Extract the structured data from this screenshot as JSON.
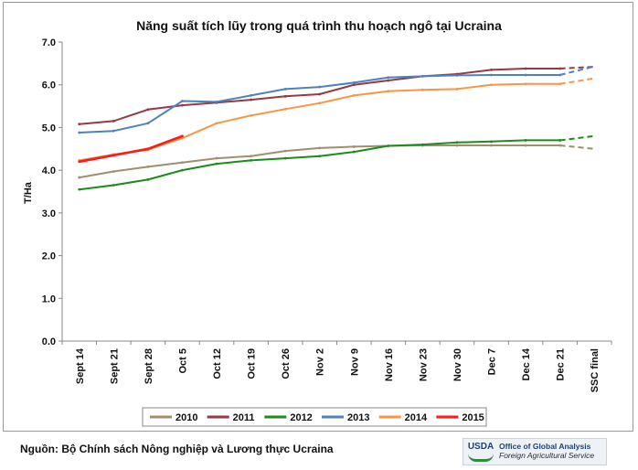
{
  "chart_data": {
    "type": "line",
    "title": "Năng suất tích lũy trong quá trình thu hoạch ngô tại Ucraina",
    "xlabel": "",
    "ylabel": "T/Ha",
    "ylim": [
      0,
      7
    ],
    "yticks": [
      "0.0",
      "1.0",
      "2.0",
      "3.0",
      "4.0",
      "5.0",
      "6.0",
      "7.0"
    ],
    "categories": [
      "Sept 14",
      "Sept 21",
      "Sept 28",
      "Oct 5",
      "Oct 12",
      "Oct 19",
      "Oct 26",
      "Nov 2",
      "Nov 9",
      "Nov 16",
      "Nov 23",
      "Nov 30",
      "Dec 7",
      "Dec 14",
      "Dec 21",
      "SSC final"
    ],
    "grid": {
      "y": false,
      "x": false
    },
    "legend_position": "bottom",
    "series": [
      {
        "name": "2010",
        "color": "#a08f6a",
        "final_style": "dashed",
        "values": [
          3.83,
          3.97,
          4.08,
          4.18,
          4.28,
          4.33,
          4.45,
          4.52,
          4.55,
          4.57,
          4.58,
          4.58,
          4.58,
          4.58,
          4.58,
          4.5
        ]
      },
      {
        "name": "2011",
        "color": "#943a44",
        "final_style": "dashed",
        "values": [
          5.08,
          5.15,
          5.42,
          5.52,
          5.58,
          5.65,
          5.73,
          5.78,
          6.0,
          6.1,
          6.2,
          6.25,
          6.35,
          6.38,
          6.38,
          6.42
        ]
      },
      {
        "name": "2012",
        "color": "#1e8a1e",
        "final_style": "dashed",
        "values": [
          3.55,
          3.65,
          3.78,
          4.0,
          4.15,
          4.23,
          4.28,
          4.33,
          4.43,
          4.57,
          4.6,
          4.65,
          4.67,
          4.7,
          4.7,
          4.8
        ]
      },
      {
        "name": "2013",
        "color": "#4f81bd",
        "final_style": "dashed",
        "values": [
          4.88,
          4.92,
          5.1,
          5.62,
          5.6,
          5.75,
          5.9,
          5.95,
          6.05,
          6.17,
          6.2,
          6.22,
          6.23,
          6.23,
          6.23,
          6.43
        ]
      },
      {
        "name": "2014",
        "color": "#f79646",
        "final_style": "dashed",
        "values": [
          4.23,
          4.37,
          4.48,
          4.75,
          5.1,
          5.28,
          5.43,
          5.57,
          5.75,
          5.85,
          5.88,
          5.9,
          6.0,
          6.02,
          6.02,
          6.15
        ]
      },
      {
        "name": "2015",
        "color": "#ff1a1a",
        "final_style": "none",
        "values": [
          4.2,
          4.35,
          4.5,
          4.8,
          null,
          null,
          null,
          null,
          null,
          null,
          null,
          null,
          null,
          null,
          null,
          null
        ]
      }
    ]
  },
  "footer": {
    "source": "Nguồn: Bộ Chính sách Nông nghiệp và Lương thực Ucraina",
    "logo_mark": "USDA",
    "logo_line1": "Office of Global Analysis",
    "logo_line2": "Foreign Agricultural Service"
  }
}
